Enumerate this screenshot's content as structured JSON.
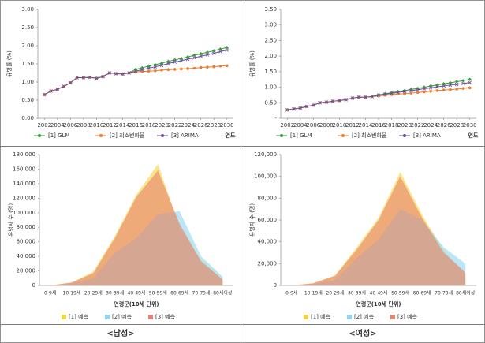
{
  "chart_data": [
    {
      "type": "line",
      "x": [
        2002,
        2003,
        2004,
        2005,
        2006,
        2007,
        2008,
        2009,
        2010,
        2011,
        2012,
        2013,
        2014,
        2015,
        2016,
        2017,
        2018,
        2019,
        2020,
        2021,
        2022,
        2023,
        2024,
        2025,
        2026,
        2027,
        2028,
        2029,
        2030
      ],
      "xlim": [
        2001,
        2031
      ],
      "xticks": [
        2002,
        2004,
        2006,
        2008,
        2010,
        2012,
        2014,
        2016,
        2018,
        2020,
        2022,
        2024,
        2026,
        2028,
        2030
      ],
      "ylim": [
        0,
        3
      ],
      "yticks": [
        {
          "value": 0,
          "label": "0.00"
        },
        {
          "value": 0.5,
          "label": "0.50"
        },
        {
          "value": 1,
          "label": "1.00"
        },
        {
          "value": 1.5,
          "label": "1.50"
        },
        {
          "value": 2,
          "label": "2.00"
        },
        {
          "value": 2.5,
          "label": "2.50"
        },
        {
          "value": 3,
          "label": "3.00"
        }
      ],
      "x_label": "연도",
      "y_label": "유병률 (%)",
      "grid": false,
      "series": [
        {
          "name": "[1] GLM",
          "color": "#3a9c3a",
          "values": [
            0.65,
            0.75,
            0.8,
            0.88,
            0.98,
            1.12,
            1.12,
            1.13,
            1.1,
            1.15,
            1.25,
            1.23,
            1.22,
            1.25,
            1.35,
            1.39,
            1.44,
            1.48,
            1.52,
            1.57,
            1.61,
            1.65,
            1.69,
            1.74,
            1.78,
            1.82,
            1.86,
            1.91,
            1.95
          ]
        },
        {
          "name": "[2] 최소변화율",
          "color": "#ed7d31",
          "values": [
            0.65,
            0.75,
            0.8,
            0.88,
            0.98,
            1.12,
            1.12,
            1.13,
            1.1,
            1.15,
            1.25,
            1.23,
            1.22,
            1.25,
            1.28,
            1.29,
            1.3,
            1.31,
            1.33,
            1.34,
            1.35,
            1.36,
            1.37,
            1.38,
            1.4,
            1.41,
            1.42,
            1.44,
            1.45
          ]
        },
        {
          "name": "[3] ARIMA",
          "color": "#6a4c9c",
          "values": [
            0.65,
            0.75,
            0.8,
            0.88,
            0.98,
            1.12,
            1.12,
            1.13,
            1.1,
            1.15,
            1.25,
            1.23,
            1.22,
            1.25,
            1.3,
            1.34,
            1.38,
            1.42,
            1.46,
            1.51,
            1.55,
            1.59,
            1.63,
            1.67,
            1.71,
            1.75,
            1.79,
            1.84,
            1.88
          ]
        }
      ]
    },
    {
      "type": "line",
      "x": [
        2002,
        2003,
        2004,
        2005,
        2006,
        2007,
        2008,
        2009,
        2010,
        2011,
        2012,
        2013,
        2014,
        2015,
        2016,
        2017,
        2018,
        2019,
        2020,
        2021,
        2022,
        2023,
        2024,
        2025,
        2026,
        2027,
        2028,
        2029,
        2030
      ],
      "xlim": [
        2001,
        2031
      ],
      "xticks": [
        2002,
        2004,
        2006,
        2008,
        2010,
        2012,
        2014,
        2016,
        2018,
        2020,
        2022,
        2024,
        2026,
        2028,
        2030
      ],
      "ylim": [
        0,
        3.5
      ],
      "yticks": [
        {
          "value": 0,
          "label": "-"
        },
        {
          "value": 0.5,
          "label": "0.50"
        },
        {
          "value": 1,
          "label": "1.00"
        },
        {
          "value": 1.5,
          "label": "1.50"
        },
        {
          "value": 2,
          "label": "2.00"
        },
        {
          "value": 2.5,
          "label": "2.50"
        },
        {
          "value": 3,
          "label": "3.00"
        },
        {
          "value": 3.5,
          "label": "3.50"
        }
      ],
      "x_label": "연도",
      "y_label": "유병률 (%)",
      "grid": false,
      "series": [
        {
          "name": "[1] GLM",
          "color": "#3a9c3a",
          "values": [
            0.27,
            0.3,
            0.33,
            0.38,
            0.42,
            0.5,
            0.52,
            0.55,
            0.57,
            0.6,
            0.65,
            0.68,
            0.68,
            0.7,
            0.75,
            0.79,
            0.82,
            0.86,
            0.89,
            0.93,
            0.96,
            1.0,
            1.04,
            1.07,
            1.11,
            1.14,
            1.18,
            1.21,
            1.25
          ]
        },
        {
          "name": "[2] 최소변화율",
          "color": "#ed7d31",
          "values": [
            0.27,
            0.3,
            0.33,
            0.38,
            0.42,
            0.5,
            0.52,
            0.55,
            0.57,
            0.6,
            0.65,
            0.68,
            0.68,
            0.7,
            0.72,
            0.74,
            0.76,
            0.78,
            0.79,
            0.81,
            0.83,
            0.85,
            0.87,
            0.89,
            0.91,
            0.92,
            0.94,
            0.96,
            0.98
          ]
        },
        {
          "name": "[3] ARIMA",
          "color": "#6a4c9c",
          "values": [
            0.27,
            0.3,
            0.33,
            0.38,
            0.42,
            0.5,
            0.52,
            0.55,
            0.57,
            0.6,
            0.65,
            0.68,
            0.68,
            0.7,
            0.74,
            0.77,
            0.8,
            0.83,
            0.86,
            0.89,
            0.92,
            0.95,
            0.98,
            1.01,
            1.04,
            1.07,
            1.09,
            1.12,
            1.15
          ]
        }
      ]
    },
    {
      "type": "area",
      "categories": [
        "0-9세",
        "10-19세",
        "20-29세",
        "30-39세",
        "40-49세",
        "50-59세",
        "60-69세",
        "70-79세",
        "80세이상"
      ],
      "ylim": [
        0,
        180000
      ],
      "yticks": [
        0,
        {
          "value": 20000,
          "label": "20,000"
        },
        {
          "value": 40000,
          "label": "40,000"
        },
        {
          "value": 60000,
          "label": "60,000"
        },
        {
          "value": 80000,
          "label": "80,000"
        },
        {
          "value": 100000,
          "label": "100,000"
        },
        {
          "value": 120000,
          "label": "120,000"
        },
        {
          "value": 140000,
          "label": "140,000"
        },
        {
          "value": 160000,
          "label": "160,000"
        },
        {
          "value": 180000,
          "label": "180,000"
        }
      ],
      "x_label": "연령군(10세 단위)",
      "y_label": "유병자 수 (명)",
      "grid": false,
      "series": [
        {
          "name": "[1] 예측",
          "color": "#f5d33c",
          "values": [
            0,
            4000,
            19000,
            68000,
            125000,
            167000,
            80000,
            35000,
            9000
          ]
        },
        {
          "name": "[2] 예측",
          "color": "#8fd6ee",
          "values": [
            0,
            3000,
            10000,
            45000,
            65000,
            98000,
            102000,
            40000,
            12000
          ]
        },
        {
          "name": "[3] 예측",
          "color": "#e8826e",
          "values": [
            0,
            4000,
            17000,
            65000,
            122000,
            158000,
            85000,
            33000,
            8000
          ]
        }
      ]
    },
    {
      "type": "area",
      "categories": [
        "0-9세",
        "10-19세",
        "20-29세",
        "30-39세",
        "40-49세",
        "50-59세",
        "60-69세",
        "70-79세",
        "80세이상"
      ],
      "ylim": [
        0,
        120000
      ],
      "yticks": [
        0,
        {
          "value": 20000,
          "label": "20,000"
        },
        {
          "value": 40000,
          "label": "40,000"
        },
        {
          "value": 60000,
          "label": "60,000"
        },
        {
          "value": 80000,
          "label": "80,000"
        },
        {
          "value": 100000,
          "label": "100,000"
        },
        {
          "value": 120000,
          "label": "120,000"
        }
      ],
      "x_label": "연령군(10세 단위)",
      "y_label": "유병자 수 (명)",
      "grid": false,
      "series": [
        {
          "name": "[1] 예측",
          "color": "#f5d33c",
          "values": [
            0,
            2000,
            9000,
            35000,
            62000,
            104000,
            65000,
            32000,
            10000
          ]
        },
        {
          "name": "[2] 예측",
          "color": "#8fd6ee",
          "values": [
            0,
            1500,
            5000,
            25000,
            42000,
            70000,
            60000,
            35000,
            20000
          ]
        },
        {
          "name": "[3] 예측",
          "color": "#e8826e",
          "values": [
            0,
            2000,
            9000,
            33000,
            60000,
            100000,
            62000,
            30000,
            12000
          ]
        }
      ]
    }
  ],
  "captions": [
    "<남성>",
    "<여성>"
  ]
}
